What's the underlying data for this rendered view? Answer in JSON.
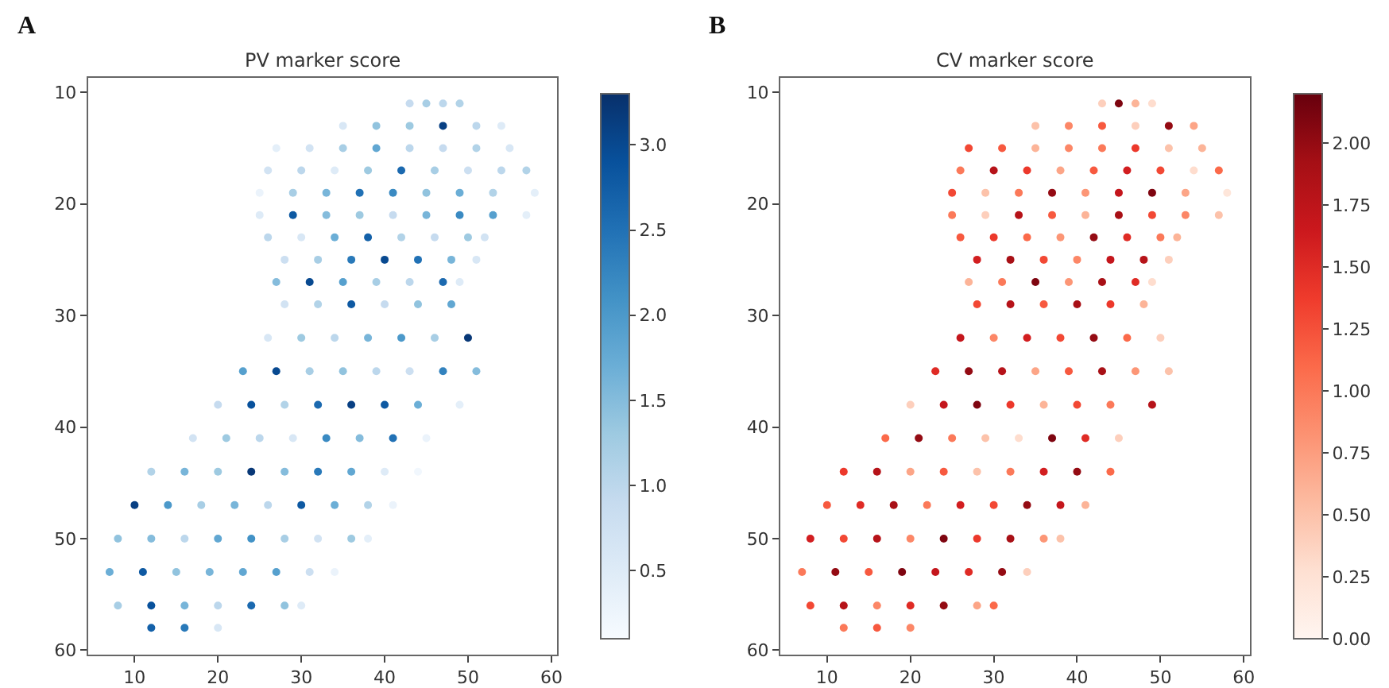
{
  "chart_data": [
    {
      "type": "scatter",
      "title": "PV marker score",
      "annotations": [
        "A"
      ],
      "marker": "circle",
      "xlim": [
        4.4,
        60.7
      ],
      "ylim": [
        60.4,
        8.7
      ],
      "xticks": [
        10,
        20,
        30,
        40,
        50,
        60
      ],
      "yticks": [
        10,
        20,
        30,
        40,
        50,
        60
      ],
      "clim": [
        0.1,
        3.3
      ],
      "cticks": [
        {
          "value": 0.5,
          "label": "0.5"
        },
        {
          "value": 1.0,
          "label": "1.0"
        },
        {
          "value": 1.5,
          "label": "1.5"
        },
        {
          "value": 2.0,
          "label": "2.0"
        },
        {
          "value": 2.5,
          "label": "2.5"
        },
        {
          "value": 3.0,
          "label": "3.0"
        }
      ],
      "series": [
        {
          "x": [
            43,
            45,
            47,
            49,
            35,
            39,
            43,
            47,
            51,
            54,
            27,
            31,
            35,
            39,
            43,
            47,
            51,
            55,
            26,
            30,
            34,
            38,
            42,
            46,
            50,
            54,
            57,
            25,
            29,
            33,
            37,
            41,
            45,
            49,
            53,
            58,
            25,
            29,
            33,
            37,
            41,
            45,
            49,
            53,
            57,
            26,
            30,
            34,
            38,
            42,
            46,
            50,
            52,
            28,
            32,
            36,
            40,
            44,
            48,
            51,
            27,
            31,
            35,
            39,
            43,
            47,
            49,
            28,
            32,
            36,
            40,
            44,
            48,
            26,
            30,
            34,
            38,
            42,
            46,
            50,
            23,
            27,
            31,
            35,
            39,
            43,
            47,
            51,
            20,
            24,
            28,
            32,
            36,
            40,
            44,
            49,
            17,
            21,
            25,
            29,
            33,
            37,
            41,
            45,
            12,
            16,
            20,
            24,
            28,
            32,
            36,
            40,
            44,
            10,
            14,
            18,
            22,
            26,
            30,
            34,
            38,
            41,
            8,
            12,
            16,
            20,
            24,
            28,
            32,
            36,
            38,
            7,
            11,
            15,
            19,
            23,
            27,
            31,
            34,
            8,
            12,
            16,
            20,
            24,
            28,
            30,
            12,
            16,
            20
          ],
          "values": [
            11,
            11,
            11,
            11,
            13,
            13,
            13,
            13,
            13,
            13,
            15,
            15,
            15,
            15,
            15,
            15,
            15,
            15,
            17,
            17,
            17,
            17,
            17,
            17,
            17,
            17,
            17,
            19,
            19,
            19,
            19,
            19,
            19,
            19,
            19,
            19,
            21,
            21,
            21,
            21,
            21,
            21,
            21,
            21,
            21,
            23,
            23,
            23,
            23,
            23,
            23,
            23,
            23,
            25,
            25,
            25,
            25,
            25,
            25,
            25,
            27,
            27,
            27,
            27,
            27,
            27,
            27,
            29,
            29,
            29,
            29,
            29,
            29,
            32,
            32,
            32,
            32,
            32,
            32,
            32,
            35,
            35,
            35,
            35,
            35,
            35,
            35,
            35,
            38,
            38,
            38,
            38,
            38,
            38,
            38,
            38,
            41,
            41,
            41,
            41,
            41,
            41,
            41,
            41,
            44,
            44,
            44,
            44,
            44,
            44,
            44,
            44,
            44,
            47,
            47,
            47,
            47,
            47,
            47,
            47,
            47,
            47,
            50,
            50,
            50,
            50,
            50,
            50,
            50,
            50,
            50,
            53,
            53,
            53,
            53,
            53,
            53,
            53,
            53,
            56,
            56,
            56,
            56,
            56,
            56,
            56,
            58,
            58,
            58
          ],
          "cvalues": [
            0.9,
            1.2,
            1.0,
            1.1,
            0.6,
            1.4,
            1.3,
            3.1,
            1.0,
            0.5,
            0.4,
            0.7,
            1.2,
            1.8,
            1.0,
            0.9,
            1.1,
            0.6,
            0.7,
            1.0,
            0.5,
            1.3,
            2.6,
            1.2,
            0.8,
            1.0,
            1.1,
            0.3,
            1.2,
            1.6,
            2.5,
            2.2,
            1.4,
            1.7,
            1.1,
            0.4,
            0.5,
            2.8,
            1.5,
            1.3,
            0.9,
            1.6,
            2.2,
            1.9,
            0.4,
            1.0,
            0.6,
            1.7,
            2.7,
            1.1,
            0.9,
            1.3,
            0.7,
            0.8,
            1.2,
            2.4,
            3.0,
            2.5,
            1.6,
            0.6,
            1.5,
            3.0,
            1.9,
            1.2,
            1.0,
            2.6,
            0.5,
            0.7,
            1.1,
            2.8,
            0.9,
            1.4,
            1.8,
            0.6,
            1.3,
            1.0,
            1.6,
            2.0,
            1.2,
            3.2,
            1.9,
            3.0,
            1.2,
            1.4,
            1.0,
            0.8,
            2.3,
            1.5,
            0.9,
            2.9,
            1.1,
            2.6,
            3.1,
            2.8,
            1.7,
            0.4,
            0.7,
            1.3,
            1.0,
            0.6,
            2.2,
            1.5,
            2.5,
            0.3,
            1.1,
            1.6,
            1.3,
            3.2,
            1.5,
            2.4,
            1.8,
            0.5,
            0.2,
            3.1,
            2.0,
            1.2,
            1.6,
            1.0,
            2.8,
            1.7,
            1.1,
            0.3,
            1.4,
            1.5,
            1.0,
            1.8,
            2.1,
            1.2,
            0.7,
            1.3,
            0.4,
            1.7,
            2.8,
            1.4,
            1.6,
            1.8,
            1.9,
            0.8,
            0.3,
            1.2,
            2.9,
            1.6,
            1.0,
            2.6,
            1.4,
            0.5,
            2.7,
            2.4,
            0.6
          ]
        }
      ]
    },
    {
      "type": "scatter",
      "title": "CV marker score",
      "annotations": [
        "B"
      ],
      "marker": "circle",
      "xlim": [
        4.4,
        60.7
      ],
      "ylim": [
        60.4,
        8.7
      ],
      "xticks": [
        10,
        20,
        30,
        40,
        50,
        60
      ],
      "yticks": [
        10,
        20,
        30,
        40,
        50,
        60
      ],
      "clim": [
        0,
        2.2
      ],
      "cticks": [
        {
          "value": 0,
          "label": "0.00"
        },
        {
          "value": 0.25,
          "label": "0.25"
        },
        {
          "value": 0.5,
          "label": "0.50"
        },
        {
          "value": 0.75,
          "label": "0.75"
        },
        {
          "value": 1.0,
          "label": "1.00"
        },
        {
          "value": 1.25,
          "label": "1.25"
        },
        {
          "value": 1.5,
          "label": "1.50"
        },
        {
          "value": 1.75,
          "label": "1.75"
        },
        {
          "value": 2.0,
          "label": "2.00"
        }
      ],
      "series": [
        {
          "x": [
            43,
            45,
            47,
            49,
            35,
            39,
            43,
            47,
            51,
            54,
            27,
            31,
            35,
            39,
            43,
            47,
            51,
            55,
            26,
            30,
            34,
            38,
            42,
            46,
            50,
            54,
            57,
            25,
            29,
            33,
            37,
            41,
            45,
            49,
            53,
            58,
            25,
            29,
            33,
            37,
            41,
            45,
            49,
            53,
            57,
            26,
            30,
            34,
            38,
            42,
            46,
            50,
            52,
            28,
            32,
            36,
            40,
            44,
            48,
            51,
            27,
            31,
            35,
            39,
            43,
            47,
            49,
            28,
            32,
            36,
            40,
            44,
            48,
            26,
            30,
            34,
            38,
            42,
            46,
            50,
            23,
            27,
            31,
            35,
            39,
            43,
            47,
            51,
            20,
            24,
            28,
            32,
            36,
            40,
            44,
            49,
            17,
            21,
            25,
            29,
            33,
            37,
            41,
            45,
            12,
            16,
            20,
            24,
            28,
            32,
            36,
            40,
            44,
            10,
            14,
            18,
            22,
            26,
            30,
            34,
            38,
            41,
            8,
            12,
            16,
            20,
            24,
            28,
            32,
            36,
            38,
            7,
            11,
            15,
            19,
            23,
            27,
            31,
            34,
            8,
            12,
            16,
            20,
            24,
            28,
            30,
            12,
            16,
            20
          ],
          "values": [
            11,
            11,
            11,
            11,
            13,
            13,
            13,
            13,
            13,
            13,
            15,
            15,
            15,
            15,
            15,
            15,
            15,
            15,
            17,
            17,
            17,
            17,
            17,
            17,
            17,
            17,
            17,
            19,
            19,
            19,
            19,
            19,
            19,
            19,
            19,
            19,
            21,
            21,
            21,
            21,
            21,
            21,
            21,
            21,
            21,
            23,
            23,
            23,
            23,
            23,
            23,
            23,
            23,
            25,
            25,
            25,
            25,
            25,
            25,
            25,
            27,
            27,
            27,
            27,
            27,
            27,
            27,
            29,
            29,
            29,
            29,
            29,
            29,
            32,
            32,
            32,
            32,
            32,
            32,
            32,
            35,
            35,
            35,
            35,
            35,
            35,
            35,
            35,
            38,
            38,
            38,
            38,
            38,
            38,
            38,
            38,
            41,
            41,
            41,
            41,
            41,
            41,
            41,
            41,
            44,
            44,
            44,
            44,
            44,
            44,
            44,
            44,
            44,
            47,
            47,
            47,
            47,
            47,
            47,
            47,
            47,
            47,
            50,
            50,
            50,
            50,
            50,
            50,
            50,
            50,
            50,
            53,
            53,
            53,
            53,
            53,
            53,
            53,
            53,
            56,
            56,
            56,
            56,
            56,
            56,
            56,
            58,
            58,
            58
          ],
          "cvalues": [
            0.4,
            2.1,
            0.6,
            0.3,
            0.5,
            0.9,
            1.2,
            0.4,
            2.0,
            0.7,
            1.3,
            1.2,
            0.6,
            0.9,
            1.0,
            1.4,
            0.5,
            0.6,
            1.0,
            1.8,
            1.4,
            0.7,
            1.2,
            1.6,
            1.3,
            0.3,
            1.1,
            1.3,
            0.5,
            1.0,
            2.0,
            0.8,
            1.7,
            2.1,
            0.7,
            0.2,
            1.0,
            0.4,
            1.8,
            1.2,
            0.6,
            1.9,
            1.3,
            0.9,
            0.5,
            1.2,
            1.4,
            1.1,
            0.8,
            2.0,
            1.5,
            1.0,
            0.6,
            1.6,
            1.9,
            1.3,
            0.9,
            1.7,
            1.8,
            0.4,
            0.6,
            1.0,
            2.1,
            0.8,
            1.9,
            1.5,
            0.3,
            1.3,
            1.8,
            1.2,
            1.9,
            1.4,
            0.6,
            1.7,
            0.9,
            1.6,
            1.3,
            2.0,
            1.1,
            0.4,
            1.5,
            2.0,
            1.8,
            0.7,
            1.2,
            1.9,
            0.8,
            0.5,
            0.4,
            1.7,
            2.1,
            1.4,
            0.6,
            1.3,
            1.0,
            1.8,
            1.1,
            2.0,
            1.0,
            0.5,
            0.3,
            2.1,
            1.5,
            0.4,
            1.4,
            1.8,
            0.7,
            1.2,
            0.5,
            1.0,
            1.6,
            2.0,
            1.1,
            1.2,
            1.5,
            1.9,
            1.0,
            1.6,
            1.3,
            2.0,
            1.7,
            0.6,
            1.6,
            1.3,
            1.8,
            0.9,
            2.1,
            1.4,
            1.9,
            0.8,
            0.5,
            1.0,
            2.0,
            1.2,
            2.1,
            1.7,
            1.5,
            2.0,
            0.4,
            1.3,
            1.8,
            0.9,
            1.5,
            2.0,
            0.7,
            1.1,
            1.0,
            1.2,
            0.9
          ]
        }
      ]
    }
  ]
}
